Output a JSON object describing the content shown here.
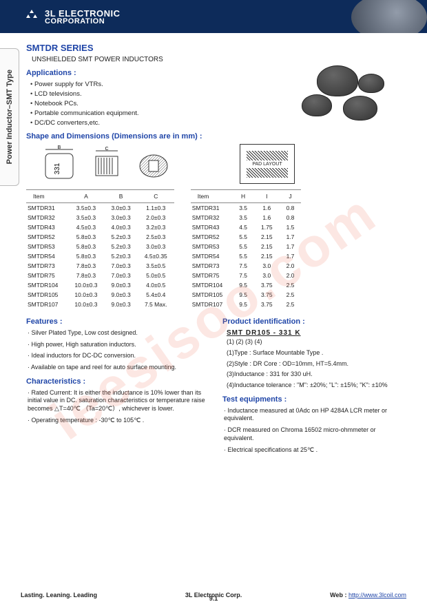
{
  "company": {
    "name_line1": "3L ELECTRONIC",
    "name_line2": "CORPORATION",
    "logo_label": "3L COILS"
  },
  "side_tab": "Power Inductor–SMT Type",
  "series_title": "SMTDR SERIES",
  "subtitle": "UNSHIELDED SMT POWER INDUCTORS",
  "sections": {
    "applications": "Applications :",
    "shape": "Shape and Dimensions (Dimensions are in mm) :",
    "features": "Features :",
    "characteristics": "Characteristics :",
    "product_id": "Product identification :",
    "test_eq": "Test equipments :"
  },
  "applications": [
    "Power supply for VTRs.",
    "LCD televisions.",
    "Notebook PCs.",
    "Portable communication equipment.",
    "DC/DC converters,etc."
  ],
  "table_left": {
    "headers": [
      "Item",
      "A",
      "B",
      "C"
    ],
    "rows": [
      [
        "SMTDR31",
        "3.5±0.3",
        "3.0±0.3",
        "1.1±0.3"
      ],
      [
        "SMTDR32",
        "3.5±0.3",
        "3.0±0.3",
        "2.0±0.3"
      ],
      [
        "SMTDR43",
        "4.5±0.3",
        "4.0±0.3",
        "3.2±0.3"
      ],
      [
        "SMTDR52",
        "5.8±0.3",
        "5.2±0.3",
        "2.5±0.3"
      ],
      [
        "SMTDR53",
        "5.8±0.3",
        "5.2±0.3",
        "3.0±0.3"
      ],
      [
        "SMTDR54",
        "5.8±0.3",
        "5.2±0.3",
        "4.5±0.35"
      ],
      [
        "SMTDR73",
        "7.8±0.3",
        "7.0±0.3",
        "3.5±0.5"
      ],
      [
        "SMTDR75",
        "7.8±0.3",
        "7.0±0.3",
        "5.0±0.5"
      ],
      [
        "SMTDR104",
        "10.0±0.3",
        "9.0±0.3",
        "4.0±0.5"
      ],
      [
        "SMTDR105",
        "10.0±0.3",
        "9.0±0.3",
        "5.4±0.4"
      ],
      [
        "SMTDR107",
        "10.0±0.3",
        "9.0±0.3",
        "7.5 Max."
      ]
    ]
  },
  "table_right": {
    "headers": [
      "Item",
      "H",
      "I",
      "J"
    ],
    "rows": [
      [
        "SMTDR31",
        "3.5",
        "1.6",
        "0.8"
      ],
      [
        "SMTDR32",
        "3.5",
        "1.6",
        "0.8"
      ],
      [
        "SMTDR43",
        "4.5",
        "1.75",
        "1.5"
      ],
      [
        "SMTDR52",
        "5.5",
        "2.15",
        "1.7"
      ],
      [
        "SMTDR53",
        "5.5",
        "2.15",
        "1.7"
      ],
      [
        "SMTDR54",
        "5.5",
        "2.15",
        "1.7"
      ],
      [
        "SMTDR73",
        "7.5",
        "3.0",
        "2.0"
      ],
      [
        "SMTDR75",
        "7.5",
        "3.0",
        "2.0"
      ],
      [
        "SMTDR104",
        "9.5",
        "3.75",
        "2.5"
      ],
      [
        "SMTDR105",
        "9.5",
        "3.75",
        "2.5"
      ],
      [
        "SMTDR107",
        "9.5",
        "3.75",
        "2.5"
      ]
    ]
  },
  "features": [
    "Silver Plated Type, Low cost designed.",
    "High power, High saturation inductors.",
    "Ideal inductors for DC-DC conversion.",
    "Available on tape and reel for auto surface mounting."
  ],
  "characteristics": [
    "Rated   Current: It is either the inductance is 10% lower than its initial value in DC. saturation characteristics or temperature raise becomes △T=40℃ （Ta=20℃）, whichever is lower.",
    "Operating temperature : -30℃  to 105℃ ."
  ],
  "pid": {
    "code": "SMT   DR105   -   331   K",
    "legend": "(1)       (2)          (3)    (4)",
    "items": [
      "(1)Type : Surface Mountable Type .",
      "(2)Style : DR Core : OD=10mm, HT=5.4mm.",
      "(3)Inductance : 331 for 330 uH.",
      "(4)Inductance tolerance : \"M\": ±20%; \"L\": ±15%; \"K\": ±10%"
    ]
  },
  "test_eq": [
    "Inductance measured at 0Adc on HP 4284A LCR meter or equivalent.",
    "DCR measured on   Chroma 16502 micro-ohmmeter or equivalent.",
    "Electrical specifications at 25℃ ."
  ],
  "footer": {
    "left": "Lasting. Leaning. Leading",
    "center": "3L Electronic Corp.",
    "right_label": "Web : ",
    "right_url": "http://www.3lcoil.com",
    "page": "9.1"
  },
  "watermark": "ieesisoo.com",
  "pad_layout_label": "PAD LAYOUT",
  "diagram_label": "331"
}
